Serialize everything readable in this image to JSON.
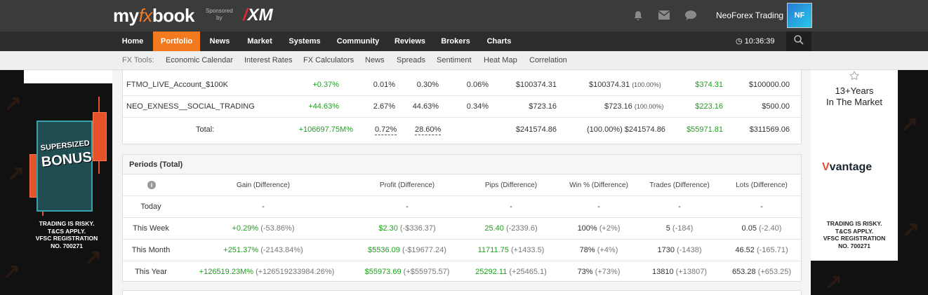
{
  "header": {
    "logo_my": "my",
    "logo_fx": "fx",
    "logo_book": "book",
    "sponsored": "Sponsored",
    "by": "by",
    "sponsor_brand_slash": "/",
    "sponsor_brand": "XM",
    "user_name": "NeoForex Trading",
    "avatar_text": "NF",
    "icons": [
      "bell-icon",
      "envelope-icon",
      "chat-icon"
    ]
  },
  "nav": {
    "items": [
      "Home",
      "Portfolio",
      "News",
      "Market",
      "Systems",
      "Community",
      "Reviews",
      "Brokers",
      "Charts"
    ],
    "active": "Portfolio",
    "clock": "10:36:39"
  },
  "tools": {
    "label": "FX Tools:",
    "items": [
      "Economic Calendar",
      "Interest Rates",
      "FX Calculators",
      "News",
      "Spreads",
      "Sentiment",
      "Heat Map",
      "Correlation"
    ]
  },
  "left_ad": {
    "headline_1": "SUPERSIZED",
    "headline_2": "BONUS",
    "risk_lines": [
      "TRADING IS RISKY.",
      "T&CS APPLY.",
      "VFSC REGISTRATION",
      "NO. 700271"
    ]
  },
  "right_ad": {
    "years_1": "13+Years",
    "years_2": "In The Market",
    "brand_v": "V",
    "brand": "vantage",
    "risk_lines": [
      "TRADING IS RISKY.",
      "T&CS APPLY.",
      "VFSC REGISTRATION",
      "NO. 700271"
    ]
  },
  "accounts": {
    "rows": [
      {
        "name": "FTMO_LIVE_Account_$100K",
        "gain": "+0.37%",
        "daily": "0.01%",
        "monthly": "0.30%",
        "drawdown": "0.06%",
        "balance": "$100374.31",
        "equity": "$100374.31",
        "equity_pct": "(100.00%)",
        "profit": "$374.31",
        "deposits": "$100000.00"
      },
      {
        "name": "NEO_EXNESS__SOCIAL_TRADING",
        "gain": "+44.63%",
        "daily": "2.67%",
        "monthly": "44.63%",
        "drawdown": "0.34%",
        "balance": "$723.16",
        "equity": "$723.16",
        "equity_pct": "(100.00%)",
        "profit": "$223.16",
        "deposits": "$500.00"
      }
    ],
    "total": {
      "label": "Total:",
      "gain": "+106697.75M%",
      "daily": "0.72%",
      "monthly": "28.60%",
      "balance": "$241574.86",
      "equity": "(100.00%) $241574.86",
      "profit": "$55971.81",
      "deposits": "$311569.06"
    }
  },
  "periods": {
    "title": "Periods (Total)",
    "info_icon": "i",
    "columns": [
      "Gain (Difference)",
      "Profit (Difference)",
      "Pips (Difference)",
      "Win % (Difference)",
      "Trades (Difference)",
      "Lots (Difference)"
    ],
    "rows": [
      {
        "label": "Today",
        "gain": "-",
        "gain_diff": "",
        "profit": "-",
        "profit_diff": "",
        "pips": "-",
        "pips_diff": "",
        "win": "-",
        "win_diff": "",
        "trades": "-",
        "trades_diff": "",
        "lots": "-",
        "lots_diff": ""
      },
      {
        "label": "This Week",
        "gain": "+0.29%",
        "gain_diff": "(-53.86%)",
        "profit": "$2.30",
        "profit_diff": "(-$336.37)",
        "pips": "25.40",
        "pips_diff": "(-2339.6)",
        "win": "100%",
        "win_diff": "(+2%)",
        "trades": "5",
        "trades_diff": "(-184)",
        "lots": "0.05",
        "lots_diff": "(-2.40)"
      },
      {
        "label": "This Month",
        "gain": "+251.37%",
        "gain_diff": "(-2143.84%)",
        "profit": "$5536.09",
        "profit_diff": "(-$19677.24)",
        "pips": "11711.75",
        "pips_diff": "(+1433.5)",
        "win": "78%",
        "win_diff": "(+4%)",
        "trades": "1730",
        "trades_diff": "(-1438)",
        "lots": "46.52",
        "lots_diff": "(-165.71)"
      },
      {
        "label": "This Year",
        "gain": "+126519.23M%",
        "gain_diff": "(+126519233984.26%)",
        "profit": "$55973.69",
        "profit_diff": "(+$55975.57)",
        "pips": "25292.11",
        "pips_diff": "(+25465.1)",
        "win": "73%",
        "win_diff": "(+73%)",
        "trades": "13810",
        "trades_diff": "(+13807)",
        "lots": "653.28",
        "lots_diff": "(+653.25)"
      }
    ]
  },
  "colors": {
    "accent": "#f47a20",
    "positive": "#1ea01e",
    "topbar": "#3b3b3b",
    "nav": "#2d2d2d"
  }
}
